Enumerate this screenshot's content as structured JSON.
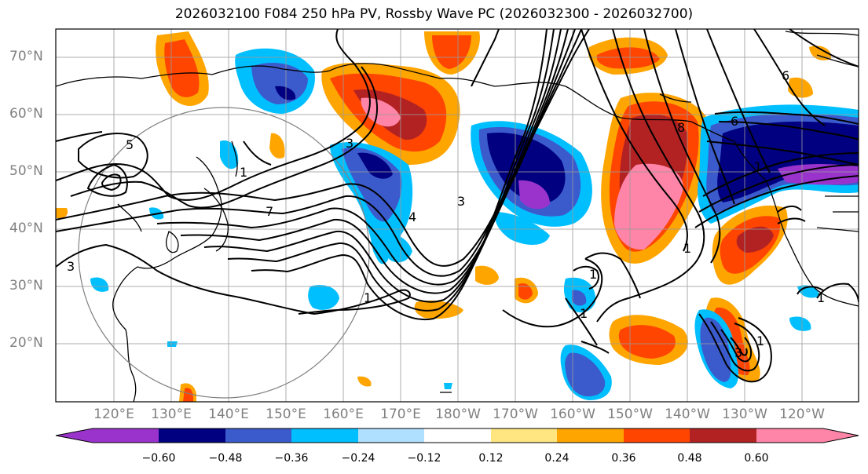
{
  "title": "2026032100 F084 250 hPa PV, Rossby Wave PC (2026032300 - 2026032700)",
  "lat_labels": [
    "70°N",
    "60°N",
    "50°N",
    "40°N",
    "30°N",
    "20°N"
  ],
  "lon_labels": [
    "120°E",
    "130°E",
    "140°E",
    "150°E",
    "160°E",
    "170°E",
    "180°W",
    "170°W",
    "160°W",
    "150°W",
    "140°W",
    "130°W",
    "120°W"
  ],
  "colorbar": {
    "colors": [
      "#9933cc",
      "#000080",
      "#3b5bcc",
      "#00bfff",
      "#b0e0ff",
      "#ffffff",
      "#ffe680",
      "#ffa500",
      "#ff4500",
      "#b22222",
      "#ff85a8"
    ],
    "tick_labels": [
      "−0.60",
      "−0.48",
      "−0.36",
      "−0.24",
      "−0.12",
      "0.12",
      "0.24",
      "0.36",
      "0.48",
      "0.60"
    ]
  },
  "contour_labels": [
    "5",
    "3",
    "3",
    "1",
    "7",
    "1",
    "4",
    "3",
    "1",
    "1",
    "1",
    "8",
    "6",
    "6",
    "1",
    "3",
    "1",
    "1"
  ]
}
